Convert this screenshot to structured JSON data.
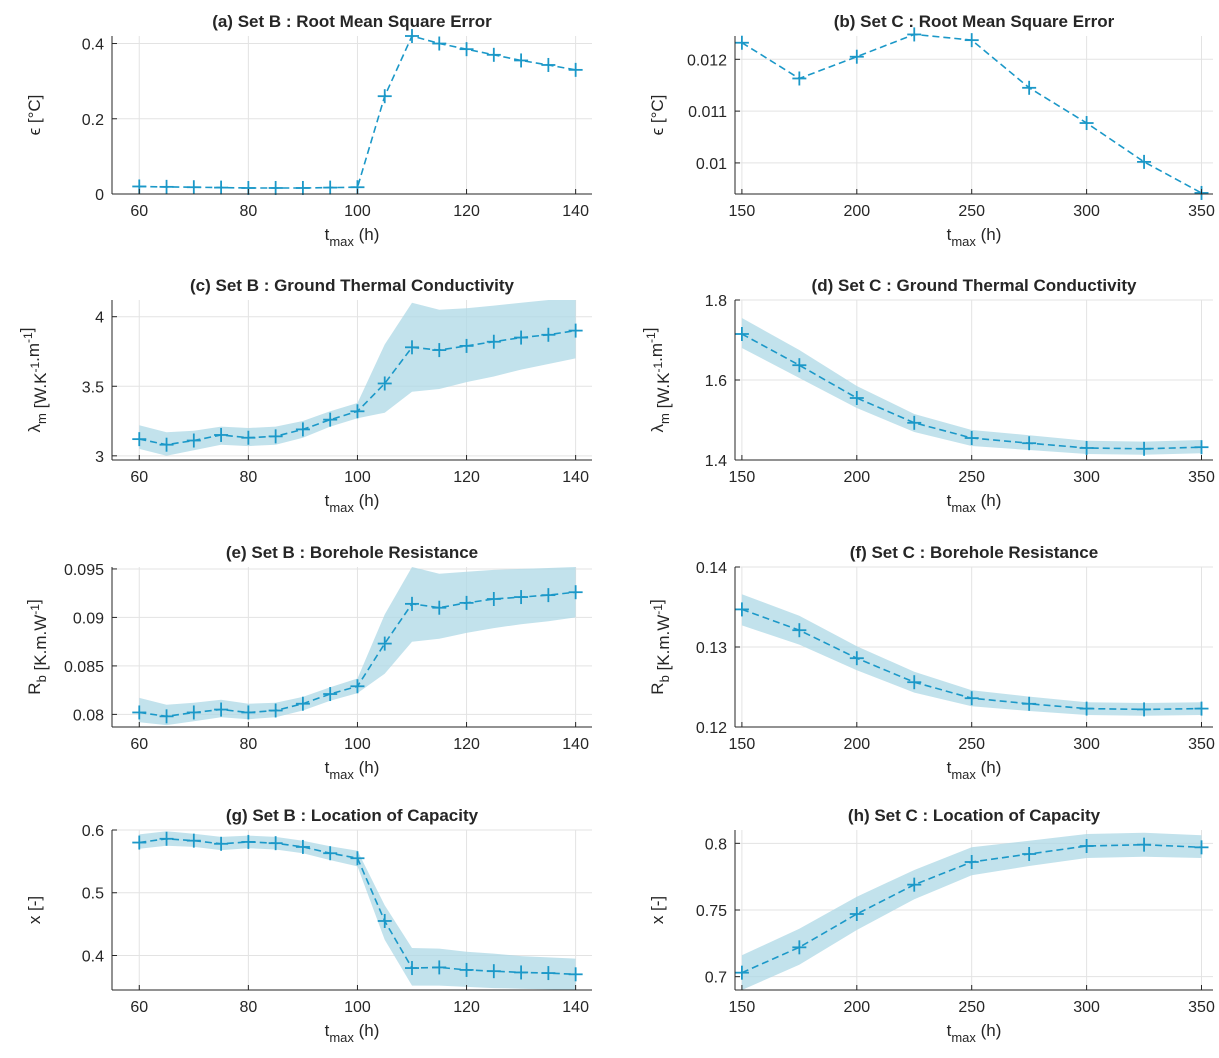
{
  "chart_data": [
    {
      "id": "a",
      "type": "line",
      "title": "(a) Set B : Root Mean Square Error",
      "xlabel": "t_max (h)",
      "ylabel": "ϵ [°C]",
      "xlim": [
        55,
        143
      ],
      "ylim": [
        0,
        0.42
      ],
      "xticks": [
        60,
        80,
        100,
        120,
        140
      ],
      "yticks": [
        0,
        0.2,
        0.4
      ],
      "grid": true,
      "band": false,
      "x": [
        60,
        65,
        70,
        75,
        80,
        85,
        90,
        95,
        100,
        105,
        110,
        115,
        120,
        125,
        130,
        135,
        140
      ],
      "y": [
        0.02,
        0.019,
        0.018,
        0.017,
        0.016,
        0.016,
        0.016,
        0.017,
        0.018,
        0.26,
        0.42,
        0.4,
        0.385,
        0.37,
        0.355,
        0.343,
        0.33
      ]
    },
    {
      "id": "b",
      "type": "line",
      "title": "(b) Set C : Root Mean Square Error",
      "xlabel": "t_max (h)",
      "ylabel": "ϵ [°C]",
      "xlim": [
        147,
        355
      ],
      "ylim": [
        0.0094,
        0.01245
      ],
      "xticks": [
        150,
        200,
        250,
        300,
        350
      ],
      "yticks": [
        0.01,
        0.011,
        0.012
      ],
      "ytick_labels": [
        "0.01",
        "0.011",
        "0.012"
      ],
      "grid": true,
      "band": false,
      "x": [
        150,
        175,
        200,
        225,
        250,
        275,
        300,
        325,
        350
      ],
      "y": [
        0.01232,
        0.01163,
        0.01205,
        0.01248,
        0.01237,
        0.01145,
        0.01077,
        0.01002,
        0.00942
      ]
    },
    {
      "id": "c",
      "type": "line",
      "title": "(c) Set B : Ground Thermal Conductivity",
      "xlabel": "t_max (h)",
      "ylabel": "λ_m [W.K^-1.m^-1]",
      "xlim": [
        55,
        143
      ],
      "ylim": [
        2.97,
        4.12
      ],
      "xticks": [
        60,
        80,
        100,
        120,
        140
      ],
      "yticks": [
        3,
        3.5,
        4
      ],
      "grid": true,
      "band": true,
      "x": [
        60,
        65,
        70,
        75,
        80,
        85,
        90,
        95,
        100,
        105,
        110,
        115,
        120,
        125,
        130,
        135,
        140
      ],
      "y": [
        3.12,
        3.08,
        3.11,
        3.15,
        3.13,
        3.14,
        3.19,
        3.26,
        3.32,
        3.52,
        3.78,
        3.76,
        3.79,
        3.82,
        3.85,
        3.87,
        3.9
      ],
      "lower": [
        3.05,
        3.0,
        3.04,
        3.08,
        3.07,
        3.08,
        3.13,
        3.21,
        3.27,
        3.31,
        3.46,
        3.48,
        3.53,
        3.57,
        3.62,
        3.66,
        3.7
      ],
      "upper": [
        3.22,
        3.17,
        3.18,
        3.21,
        3.2,
        3.21,
        3.25,
        3.32,
        3.38,
        3.8,
        4.1,
        4.05,
        4.06,
        4.08,
        4.1,
        4.12,
        4.12
      ]
    },
    {
      "id": "d",
      "type": "line",
      "title": "(d) Set C : Ground Thermal Conductivity",
      "xlabel": "t_max (h)",
      "ylabel": "λ_m [W.K^-1.m^-1]",
      "xlim": [
        147,
        355
      ],
      "ylim": [
        1.4,
        1.8
      ],
      "xticks": [
        150,
        200,
        250,
        300,
        350
      ],
      "yticks": [
        1.4,
        1.6,
        1.8
      ],
      "grid": true,
      "band": true,
      "x": [
        150,
        175,
        200,
        225,
        250,
        275,
        300,
        325,
        350
      ],
      "y": [
        1.715,
        1.637,
        1.555,
        1.493,
        1.455,
        1.442,
        1.43,
        1.428,
        1.432
      ],
      "lower": [
        1.68,
        1.605,
        1.53,
        1.47,
        1.435,
        1.425,
        1.415,
        1.413,
        1.417
      ],
      "upper": [
        1.755,
        1.675,
        1.585,
        1.515,
        1.475,
        1.462,
        1.448,
        1.446,
        1.45
      ]
    },
    {
      "id": "e",
      "type": "line",
      "title": "(e) Set B : Borehole Resistance",
      "xlabel": "t_max (h)",
      "ylabel": "R_b [K.m.W^-1]",
      "xlim": [
        55,
        143
      ],
      "ylim": [
        0.0787,
        0.0952
      ],
      "xticks": [
        60,
        80,
        100,
        120,
        140
      ],
      "yticks": [
        0.08,
        0.085,
        0.09,
        0.095
      ],
      "ytick_labels": [
        "0.08",
        "0.085",
        "0.09",
        "0.095"
      ],
      "grid": true,
      "band": true,
      "x": [
        60,
        65,
        70,
        75,
        80,
        85,
        90,
        95,
        100,
        105,
        110,
        115,
        120,
        125,
        130,
        135,
        140
      ],
      "y": [
        0.0802,
        0.0798,
        0.0802,
        0.0805,
        0.0802,
        0.0804,
        0.0811,
        0.0821,
        0.0829,
        0.0873,
        0.0914,
        0.091,
        0.0915,
        0.0919,
        0.0921,
        0.0923,
        0.0926
      ],
      "lower": [
        0.0792,
        0.0789,
        0.0793,
        0.0797,
        0.0795,
        0.0797,
        0.0804,
        0.0814,
        0.0822,
        0.0842,
        0.0875,
        0.0878,
        0.0884,
        0.0889,
        0.0893,
        0.0896,
        0.09
      ],
      "upper": [
        0.0817,
        0.081,
        0.0812,
        0.0815,
        0.0811,
        0.0812,
        0.0818,
        0.0828,
        0.0837,
        0.0903,
        0.0952,
        0.0945,
        0.0947,
        0.0949,
        0.095,
        0.0951,
        0.0952
      ]
    },
    {
      "id": "f",
      "type": "line",
      "title": "(f) Set C : Borehole Resistance",
      "xlabel": "t_max (h)",
      "ylabel": "R_b [K.m.W^-1]",
      "xlim": [
        147,
        355
      ],
      "ylim": [
        0.12,
        0.14
      ],
      "xticks": [
        150,
        200,
        250,
        300,
        350
      ],
      "yticks": [
        0.12,
        0.13,
        0.14
      ],
      "grid": true,
      "band": true,
      "x": [
        150,
        175,
        200,
        225,
        250,
        275,
        300,
        325,
        350
      ],
      "y": [
        0.1347,
        0.1321,
        0.1286,
        0.1256,
        0.1236,
        0.1229,
        0.1223,
        0.1222,
        0.1223
      ],
      "lower": [
        0.1327,
        0.1303,
        0.1271,
        0.1243,
        0.1226,
        0.122,
        0.1215,
        0.1214,
        0.1215
      ],
      "upper": [
        0.1366,
        0.1339,
        0.1301,
        0.1269,
        0.1246,
        0.1238,
        0.1231,
        0.123,
        0.1231
      ]
    },
    {
      "id": "g",
      "type": "line",
      "title": "(g) Set B : Location of Capacity",
      "xlabel": "t_max (h)",
      "ylabel": "x [-]",
      "xlim": [
        55,
        143
      ],
      "ylim": [
        0.345,
        0.6
      ],
      "xticks": [
        60,
        80,
        100,
        120,
        140
      ],
      "yticks": [
        0.4,
        0.5,
        0.6
      ],
      "grid": true,
      "band": true,
      "x": [
        60,
        65,
        70,
        75,
        80,
        85,
        90,
        95,
        100,
        105,
        110,
        115,
        120,
        125,
        130,
        135,
        140
      ],
      "y": [
        0.58,
        0.586,
        0.583,
        0.578,
        0.581,
        0.579,
        0.573,
        0.563,
        0.555,
        0.455,
        0.38,
        0.381,
        0.377,
        0.375,
        0.373,
        0.372,
        0.37
      ],
      "lower": [
        0.57,
        0.575,
        0.573,
        0.568,
        0.571,
        0.569,
        0.563,
        0.552,
        0.542,
        0.425,
        0.352,
        0.352,
        0.35,
        0.348,
        0.347,
        0.346,
        0.345
      ],
      "upper": [
        0.593,
        0.598,
        0.594,
        0.589,
        0.591,
        0.589,
        0.583,
        0.574,
        0.567,
        0.48,
        0.412,
        0.411,
        0.406,
        0.403,
        0.399,
        0.397,
        0.395
      ]
    },
    {
      "id": "h",
      "type": "line",
      "title": "(h) Set C : Location of Capacity",
      "xlabel": "t_max (h)",
      "ylabel": "x [-]",
      "xlim": [
        147,
        355
      ],
      "ylim": [
        0.69,
        0.81
      ],
      "xticks": [
        150,
        200,
        250,
        300,
        350
      ],
      "yticks": [
        0.7,
        0.75,
        0.8
      ],
      "grid": true,
      "band": true,
      "x": [
        150,
        175,
        200,
        225,
        250,
        275,
        300,
        325,
        350
      ],
      "y": [
        0.703,
        0.722,
        0.747,
        0.769,
        0.786,
        0.792,
        0.798,
        0.799,
        0.797
      ],
      "lower": [
        0.69,
        0.709,
        0.735,
        0.758,
        0.776,
        0.783,
        0.789,
        0.79,
        0.789
      ],
      "upper": [
        0.716,
        0.736,
        0.76,
        0.78,
        0.797,
        0.802,
        0.807,
        0.808,
        0.806
      ]
    }
  ]
}
